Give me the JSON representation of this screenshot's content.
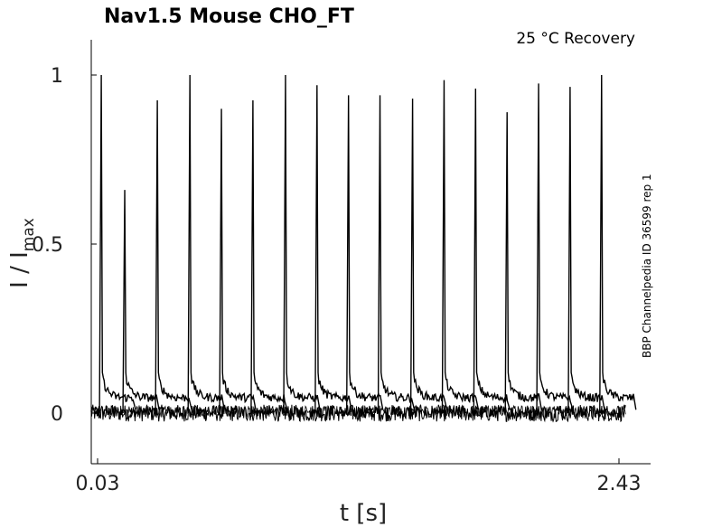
{
  "chart_data": {
    "type": "line",
    "title": "Nav1.5  Mouse  CHO_FT",
    "annotation": "25 °C  Recovery",
    "side_label": "BBP Channelpedia ID 36599 rep 1",
    "xlabel": "t [s]",
    "ylabel_main": "I / I",
    "ylabel_sub": "max",
    "xlim": [
      0.0,
      2.46
    ],
    "ylim": [
      -0.15,
      1.1
    ],
    "xticks": [
      0.03,
      2.43
    ],
    "xtick_labels": [
      "0.03",
      "2.43"
    ],
    "yticks": [
      0,
      0.5,
      1
    ],
    "ytick_labels": [
      "0",
      "0.5",
      "1"
    ],
    "grid": false,
    "series": [
      {
        "baseline_level": 0.0,
        "tail_level": 0.045,
        "peaks": [
          {
            "t": 0.047,
            "y": 1.0
          },
          {
            "t": 0.155,
            "y": 0.66
          },
          {
            "t": 0.305,
            "y": 0.925
          },
          {
            "t": 0.455,
            "y": 1.0
          },
          {
            "t": 0.6,
            "y": 0.9
          },
          {
            "t": 0.745,
            "y": 0.925
          },
          {
            "t": 0.895,
            "y": 1.0
          },
          {
            "t": 1.04,
            "y": 0.97
          },
          {
            "t": 1.185,
            "y": 0.94
          },
          {
            "t": 1.33,
            "y": 0.94
          },
          {
            "t": 1.48,
            "y": 0.93
          },
          {
            "t": 1.625,
            "y": 0.985
          },
          {
            "t": 1.77,
            "y": 0.96
          },
          {
            "t": 1.915,
            "y": 0.89
          },
          {
            "t": 2.06,
            "y": 0.975
          },
          {
            "t": 2.205,
            "y": 0.965
          },
          {
            "t": 2.35,
            "y": 1.0
          }
        ]
      }
    ]
  }
}
